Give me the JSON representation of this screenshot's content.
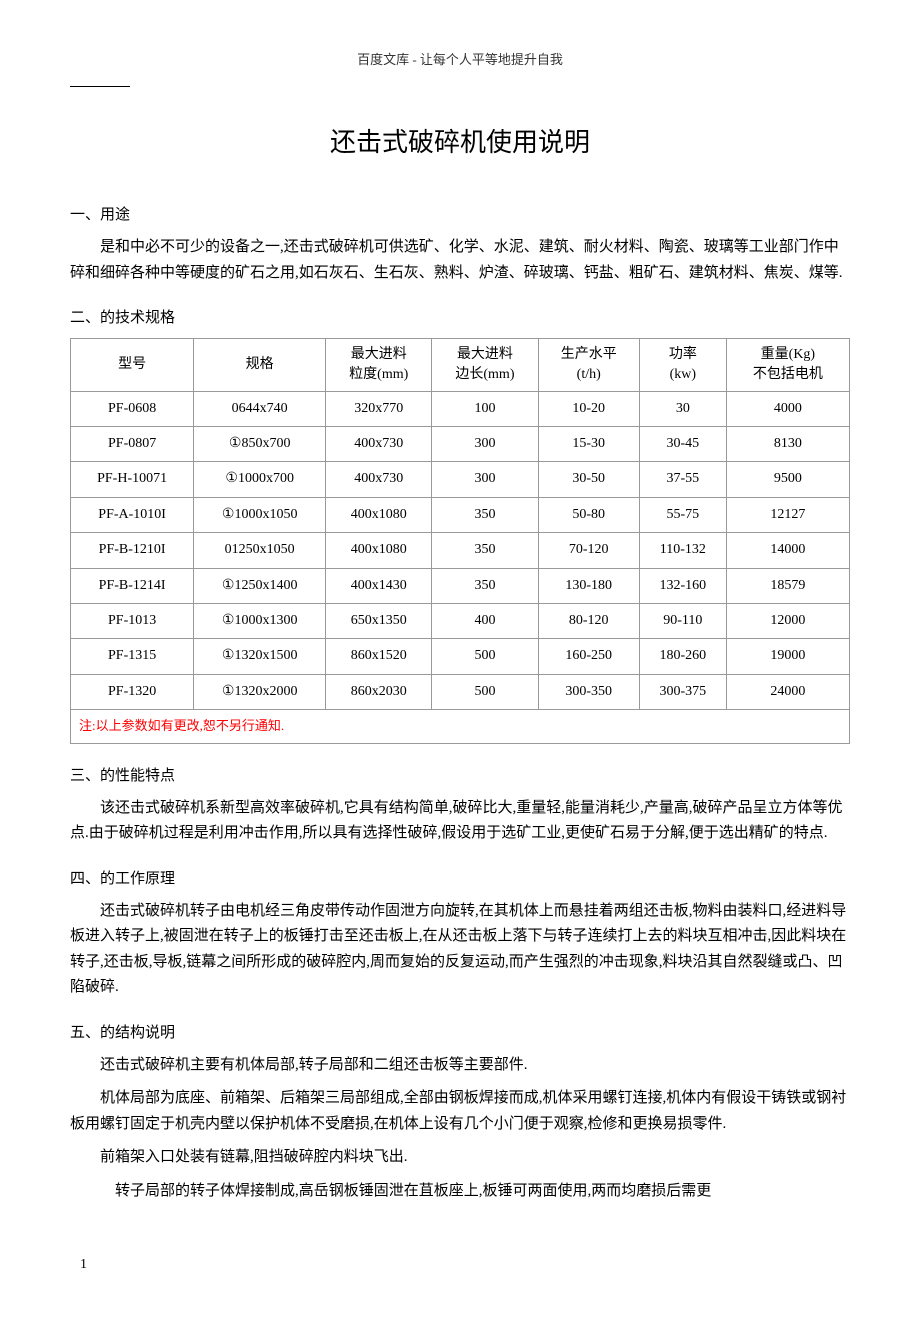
{
  "header": {
    "tagline": "百度文库 - 让每个人平等地提升自我"
  },
  "title": "还击式破碎机使用说明",
  "sections": {
    "one": {
      "heading": "一、用途",
      "p1": "是和中必不可少的设备之一,还击式破碎机可供选矿、化学、水泥、建筑、耐火材料、陶瓷、玻璃等工业部门作中碎和细碎各种中等硬度的矿石之用,如石灰石、生石灰、熟料、炉渣、碎玻璃、钙盐、粗矿石、建筑材料、焦炭、煤等."
    },
    "two": {
      "heading": "二、的技术规格",
      "table": {
        "columns": [
          {
            "label_line1": "型号",
            "label_line2": ""
          },
          {
            "label_line1": "规格",
            "label_line2": ""
          },
          {
            "label_line1": "最大进料",
            "label_line2": "粒度(mm)"
          },
          {
            "label_line1": "最大进料",
            "label_line2": "边长(mm)"
          },
          {
            "label_line1": "生产水平",
            "label_line2": "(t/h)"
          },
          {
            "label_line1": "功率",
            "label_line2": "(kw)"
          },
          {
            "label_line1": "重量(Kg)",
            "label_line2": "不包括电机"
          }
        ],
        "rows": [
          [
            "PF-0608",
            "0644x740",
            "320x770",
            "100",
            "10-20",
            "30",
            "4000"
          ],
          [
            "PF-0807",
            "①850x700",
            "400x730",
            "300",
            "15-30",
            "30-45",
            "8130"
          ],
          [
            "PF-H-10071",
            "①1000x700",
            "400x730",
            "300",
            "30-50",
            "37-55",
            "9500"
          ],
          [
            "PF-A-1010I",
            "①1000x1050",
            "400x1080",
            "350",
            "50-80",
            "55-75",
            "12127"
          ],
          [
            "PF-B-1210I",
            "01250x1050",
            "400x1080",
            "350",
            "70-120",
            "110-132",
            "14000"
          ],
          [
            "PF-B-1214I",
            "①1250x1400",
            "400x1430",
            "350",
            "130-180",
            "132-160",
            "18579"
          ],
          [
            "PF-1013",
            "①1000x1300",
            "650x1350",
            "400",
            "80-120",
            "90-110",
            "12000"
          ],
          [
            "PF-1315",
            "①1320x1500",
            "860x1520",
            "500",
            "160-250",
            "180-260",
            "19000"
          ],
          [
            "PF-1320",
            "①1320x2000",
            "860x2030",
            "500",
            "300-350",
            "300-375",
            "24000"
          ]
        ],
        "note": "注:以上参数如有更改,恕不另行通知."
      }
    },
    "three": {
      "heading": "三、的性能特点",
      "p1": "该还击式破碎机系新型高效率破碎机,它具有结构简单,破碎比大,重量轻,能量消耗少,产量高,破碎产品呈立方体等优点.由于破碎机过程是利用冲击作用,所以具有选择性破碎,假设用于选矿工业,更使矿石易于分解,便于选出精矿的特点."
    },
    "four": {
      "heading": "四、的工作原理",
      "p1": "还击式破碎机转子由电机经三角皮带传动作固泄方向旋转,在其机体上而悬挂着两组还击板,物料由装料口,经进料导板进入转子上,被固泄在转子上的板锤打击至还击板上,在从还击板上落下与转子连续打上去的料块互相冲击,因此料块在转子,还击板,导板,链幕之间所形成的破碎腔内,周而复始的反复运动,而产生强烈的冲击现象,料块沿其自然裂缝或凸、凹陷破碎."
    },
    "five": {
      "heading": "五、的结构说明",
      "p1": "还击式破碎机主要有机体局部,转子局部和二组还击板等主要部件.",
      "p2": "机体局部为底座、前箱架、后箱架三局部组成,全部由钢板焊接而成,机体采用螺钉连接,机体内有假设干铸铁或钢衬板用螺钉固定于机壳内壁以保护机体不受磨损,在机体上设有几个小门便于观察,检修和更换易损零件.",
      "p3": "前箱架入口处装有链幕,阻挡破碎腔内料块飞出.",
      "p4": "转子局部的转子体焊接制成,高岳钢板锤固泄在苴板座上,板锤可两面使用,两而均磨损后需更"
    }
  },
  "footer": {
    "page": "1"
  }
}
